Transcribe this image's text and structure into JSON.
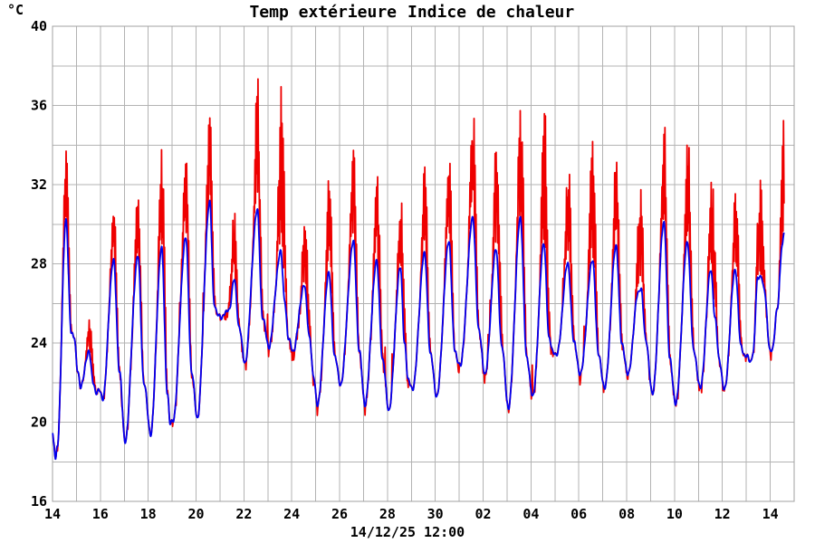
{
  "colors": {
    "temp": "#0000ee",
    "heat_index": "#ee0000",
    "grid": "#b3b3b3",
    "frame": "#a0a0a0",
    "text": "#000000",
    "background": "#ffffff"
  },
  "chart_data": {
    "type": "line",
    "title": "Temp extérieure Indice de chaleur",
    "ylabel": "°C",
    "xlabel": "",
    "ylim": [
      16,
      40
    ],
    "y_tick_labels": [
      16,
      20,
      24,
      28,
      32,
      36,
      40
    ],
    "y_grid_step": 2,
    "grid": true,
    "legend_position": "top-center",
    "footer_timestamp": "14/12/25 12:00",
    "x_axis": {
      "span_days": 31,
      "start": "14 Nov",
      "end": "15 Dec",
      "grid_step_days": 1,
      "tick_days": [
        0,
        2,
        4,
        6,
        8,
        10,
        12,
        14,
        16,
        18,
        20,
        22,
        24,
        26,
        28,
        30
      ],
      "tick_labels": [
        "14",
        "16",
        "18",
        "20",
        "22",
        "24",
        "26",
        "28",
        "30",
        "02",
        "04",
        "06",
        "08",
        "10",
        "12",
        "14"
      ]
    },
    "data_end_day": 30.58,
    "series": [
      {
        "name": "Temp extérieure",
        "color": "#0000ee",
        "role": "outdoor-temperature",
        "unit": "°C",
        "keypoints": [
          [
            0.0,
            19.4
          ],
          [
            0.05,
            18.9
          ],
          [
            0.13,
            18.2
          ],
          [
            0.2,
            18.8
          ],
          [
            0.56,
            30.2
          ],
          [
            0.78,
            24.6
          ],
          [
            0.9,
            24.3
          ],
          [
            1.05,
            22.6
          ],
          [
            1.18,
            21.8
          ],
          [
            1.52,
            23.6
          ],
          [
            1.7,
            22.0
          ],
          [
            1.82,
            21.5
          ],
          [
            1.95,
            21.6
          ],
          [
            2.1,
            21.2
          ],
          [
            2.55,
            28.2
          ],
          [
            2.8,
            22.6
          ],
          [
            3.03,
            19.0
          ],
          [
            3.57,
            28.4
          ],
          [
            3.82,
            22.0
          ],
          [
            4.1,
            19.4
          ],
          [
            4.56,
            28.8
          ],
          [
            4.8,
            21.5
          ],
          [
            4.92,
            19.9
          ],
          [
            5.04,
            20.1
          ],
          [
            5.57,
            29.3
          ],
          [
            5.82,
            22.5
          ],
          [
            6.05,
            20.2
          ],
          [
            6.57,
            31.1
          ],
          [
            6.76,
            26.0
          ],
          [
            6.9,
            25.4
          ],
          [
            7.06,
            25.3
          ],
          [
            7.22,
            25.5
          ],
          [
            7.38,
            25.7
          ],
          [
            7.6,
            27.2
          ],
          [
            7.8,
            24.8
          ],
          [
            8.04,
            23.0
          ],
          [
            8.56,
            30.7
          ],
          [
            8.78,
            25.3
          ],
          [
            9.04,
            23.8
          ],
          [
            9.54,
            28.6
          ],
          [
            9.7,
            26.2
          ],
          [
            9.86,
            24.2
          ],
          [
            10.06,
            23.6
          ],
          [
            10.52,
            26.9
          ],
          [
            10.75,
            24.3
          ],
          [
            10.9,
            22.3
          ],
          [
            11.08,
            20.9
          ],
          [
            11.55,
            27.5
          ],
          [
            11.8,
            23.3
          ],
          [
            12.04,
            21.9
          ],
          [
            12.58,
            29.1
          ],
          [
            12.82,
            23.6
          ],
          [
            13.06,
            20.9
          ],
          [
            13.55,
            28.1
          ],
          [
            13.8,
            23.1
          ],
          [
            14.06,
            20.6
          ],
          [
            14.54,
            27.8
          ],
          [
            14.72,
            24.0
          ],
          [
            14.86,
            22.1
          ],
          [
            15.06,
            21.7
          ],
          [
            15.55,
            28.5
          ],
          [
            15.8,
            23.4
          ],
          [
            16.06,
            21.3
          ],
          [
            16.57,
            29.1
          ],
          [
            16.82,
            23.6
          ],
          [
            16.93,
            23.1
          ],
          [
            17.05,
            22.9
          ],
          [
            17.57,
            30.3
          ],
          [
            17.82,
            24.6
          ],
          [
            18.08,
            22.4
          ],
          [
            18.54,
            28.7
          ],
          [
            18.78,
            23.8
          ],
          [
            19.06,
            20.7
          ],
          [
            19.56,
            30.3
          ],
          [
            19.82,
            23.2
          ],
          [
            20.08,
            21.3
          ],
          [
            20.54,
            29.0
          ],
          [
            20.76,
            24.2
          ],
          [
            20.9,
            23.6
          ],
          [
            21.08,
            23.4
          ],
          [
            21.54,
            28.0
          ],
          [
            21.8,
            24.0
          ],
          [
            22.06,
            22.4
          ],
          [
            22.58,
            28.2
          ],
          [
            22.82,
            23.4
          ],
          [
            23.08,
            21.7
          ],
          [
            23.56,
            28.9
          ],
          [
            23.8,
            23.9
          ],
          [
            24.06,
            22.4
          ],
          [
            24.48,
            26.5
          ],
          [
            24.6,
            26.8
          ],
          [
            24.8,
            24.1
          ],
          [
            25.08,
            21.4
          ],
          [
            25.56,
            30.1
          ],
          [
            25.8,
            23.2
          ],
          [
            26.05,
            20.9
          ],
          [
            26.54,
            29.1
          ],
          [
            26.8,
            23.6
          ],
          [
            27.08,
            21.7
          ],
          [
            27.52,
            27.7
          ],
          [
            27.7,
            25.2
          ],
          [
            27.86,
            23.2
          ],
          [
            28.08,
            21.6
          ],
          [
            28.54,
            27.7
          ],
          [
            28.78,
            23.8
          ],
          [
            28.92,
            23.4
          ],
          [
            29.06,
            23.3
          ],
          [
            29.16,
            23.0
          ],
          [
            29.28,
            23.5
          ],
          [
            29.48,
            27.3
          ],
          [
            29.62,
            27.4
          ],
          [
            29.74,
            26.7
          ],
          [
            30.0,
            23.6
          ],
          [
            30.08,
            23.6
          ],
          [
            30.3,
            25.8
          ],
          [
            30.5,
            28.9
          ],
          [
            30.58,
            29.7
          ]
        ]
      },
      {
        "name": "Indice de chaleur",
        "color": "#ee0000",
        "role": "heat-index",
        "unit": "°C",
        "night_behavior": "tracks outdoor temperature, spiky above it during daytime",
        "daily_max": [
          34.2,
          25.6,
          31.3,
          31.8,
          34.2,
          34.5,
          36.2,
          30.8,
          37.6,
          38.2,
          31.3,
          33.9,
          34.3,
          33.0,
          32.0,
          33.2,
          33.8,
          36.3,
          35.8,
          37.1,
          36.6,
          34.2,
          35.1,
          34.1,
          32.3,
          35.8,
          35.2,
          33.6,
          33.0,
          32.5,
          35.9
        ]
      }
    ]
  }
}
